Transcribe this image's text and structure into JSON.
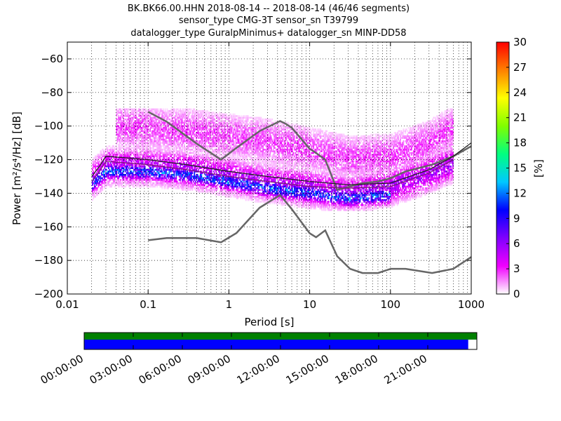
{
  "chart_data": [
    {
      "type": "heatmap",
      "title_lines": [
        "BK.BK66.00.HHN   2018-08-14 -- 2018-08-14  (46/46 segments)",
        "sensor_type CMG-3T sensor_sn T39799",
        "datalogger_type GuralpMinimus+ datalogger_sn MINP-DD58"
      ],
      "xlabel": "Period [s]",
      "ylabel": "Power [m²/s⁴/Hz] [dB]",
      "x_scale": "log",
      "xlim": [
        0.01,
        1000
      ],
      "ylim": [
        -200,
        -50
      ],
      "x_ticks": [
        {
          "value": 0.01,
          "label": "0.01"
        },
        {
          "value": 0.1,
          "label": "0.1"
        },
        {
          "value": 1,
          "label": "1"
        },
        {
          "value": 10,
          "label": "10"
        },
        {
          "value": 100,
          "label": "100"
        },
        {
          "value": 1000,
          "label": "1000"
        }
      ],
      "y_ticks": [
        {
          "value": -60,
          "label": "−60"
        },
        {
          "value": -80,
          "label": "−80"
        },
        {
          "value": -100,
          "label": "−100"
        },
        {
          "value": -120,
          "label": "−120"
        },
        {
          "value": -140,
          "label": "−140"
        },
        {
          "value": -160,
          "label": "−160"
        },
        {
          "value": -180,
          "label": "−180"
        },
        {
          "value": -200,
          "label": "−200"
        }
      ],
      "grid": true,
      "colorbar": {
        "label": "[%]",
        "range": [
          0,
          30
        ],
        "ticks": [
          "0",
          "3",
          "6",
          "9",
          "12",
          "15",
          "18",
          "21",
          "24",
          "27",
          "30"
        ],
        "stops": [
          "#ffffff",
          "#f000ff",
          "#8000ff",
          "#0000ff",
          "#00c8ff",
          "#00ff80",
          "#80ff00",
          "#ffff00",
          "#ff8000",
          "#ff0000"
        ]
      },
      "density_bands": [
        {
          "name": "upper",
          "x": [
            0.04,
            0.1,
            0.3,
            1,
            3,
            10,
            30,
            100,
            300,
            600
          ],
          "y": [
            -100,
            -101,
            -103,
            -106,
            -109,
            -114,
            -119,
            -118,
            -110,
            -101
          ],
          "spread": 8,
          "level": 2.5
        },
        {
          "name": "middle",
          "x": [
            0.02,
            0.03,
            0.1,
            0.3,
            1,
            3,
            10,
            30,
            100,
            300,
            600
          ],
          "y": [
            -132,
            -124,
            -124,
            -126,
            -130,
            -134,
            -137,
            -140,
            -136,
            -128,
            -122
          ],
          "spread": 6,
          "level": 5
        },
        {
          "name": "core",
          "x": [
            0.02,
            0.03,
            0.1,
            0.3,
            1,
            3,
            10,
            30,
            100
          ],
          "y": [
            -135,
            -127,
            -127,
            -129,
            -133,
            -137,
            -140,
            -143,
            -141
          ],
          "spread": 3,
          "level": 10
        }
      ],
      "series": [
        {
          "kind": "noise-model-high",
          "color": "#666666",
          "x": [
            0.1,
            0.17,
            0.4,
            0.8,
            1.24,
            2.4,
            4.3,
            5.0,
            6.0,
            10,
            12,
            15.6,
            21.9,
            31.6,
            45,
            70,
            101,
            154,
            328,
            600,
            1000
          ],
          "y": [
            -91.5,
            -97.4,
            -110.5,
            -120,
            -113,
            -103,
            -97,
            -98.5,
            -101,
            -113.5,
            -116,
            -120,
            -138,
            -136,
            -134,
            -133,
            -131,
            -127,
            -123,
            -118,
            -112
          ]
        },
        {
          "kind": "noise-model-low",
          "color": "#666666",
          "x": [
            0.1,
            0.17,
            0.4,
            0.8,
            1.24,
            2.4,
            4.3,
            5.9,
            10,
            12,
            15.6,
            21.9,
            31.6,
            45,
            70,
            101,
            154,
            328,
            600,
            1000
          ],
          "y": [
            -168,
            -166.7,
            -166.7,
            -169.2,
            -163.7,
            -148.6,
            -141.1,
            -149,
            -163.8,
            -166.2,
            -162.1,
            -177.5,
            -185,
            -187.5,
            -187.5,
            -185,
            -185,
            -187.5,
            -185,
            -178
          ]
        },
        {
          "kind": "mean",
          "color": "#222222",
          "x": [
            0.02,
            0.025,
            0.03,
            0.1,
            0.3,
            1,
            3,
            10,
            30,
            100,
            300,
            600,
            1000
          ],
          "y": [
            -130,
            -124,
            -118,
            -120,
            -123,
            -127,
            -130,
            -133,
            -135,
            -134,
            -126,
            -118,
            -110
          ]
        },
        {
          "kind": "mode",
          "color": "#7a1a7a",
          "x": [
            0.02,
            0.025,
            0.03,
            0.1,
            0.3,
            1,
            3,
            10,
            30,
            100,
            300,
            600
          ],
          "y": [
            -133,
            -127,
            -121,
            -123,
            -126,
            -130,
            -133,
            -136,
            -137,
            -136,
            -128,
            -120
          ]
        }
      ]
    },
    {
      "type": "timeline",
      "time_labels": [
        "00:00:00",
        "03:00:00",
        "06:00:00",
        "09:00:00",
        "12:00:00",
        "15:00:00",
        "18:00:00",
        "21:00:00"
      ],
      "data_coverage": 1.0,
      "gap_free_coverage": 0.978,
      "colors": {
        "top": "#008000",
        "bottom": "#0000ff"
      }
    }
  ]
}
